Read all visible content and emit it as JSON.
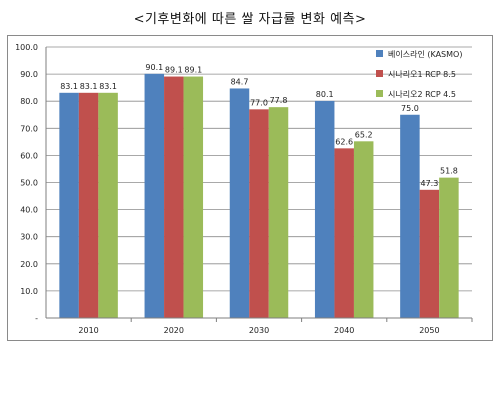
{
  "page": {
    "title": "<기후변화에 따른 쌀 자급률 변화 예측>"
  },
  "chart_data": {
    "type": "bar",
    "title": "",
    "xlabel": "",
    "ylabel": "",
    "categories": [
      "2010",
      "2020",
      "2030",
      "2040",
      "2050"
    ],
    "series": [
      {
        "name": "베이스라인 (KASMO)",
        "color": "#4f81bd",
        "values": [
          83.1,
          90.1,
          84.7,
          80.1,
          75.0
        ]
      },
      {
        "name": "시나리오1 RCP 8.5",
        "color": "#c0504d",
        "values": [
          83.1,
          89.1,
          77.0,
          62.6,
          47.3
        ]
      },
      {
        "name": "시나리오2 RCP 4.5",
        "color": "#9bbb59",
        "values": [
          83.1,
          89.1,
          77.8,
          65.2,
          51.8
        ]
      }
    ],
    "ylim": [
      0,
      100
    ],
    "ytick_labels": [
      "-",
      "10.0",
      "20.0",
      "30.0",
      "40.0",
      "50.0",
      "60.0",
      "70.0",
      "80.0",
      "90.0",
      "100.0"
    ],
    "grid": true,
    "legend_position": "top-right",
    "data_labels": true
  }
}
